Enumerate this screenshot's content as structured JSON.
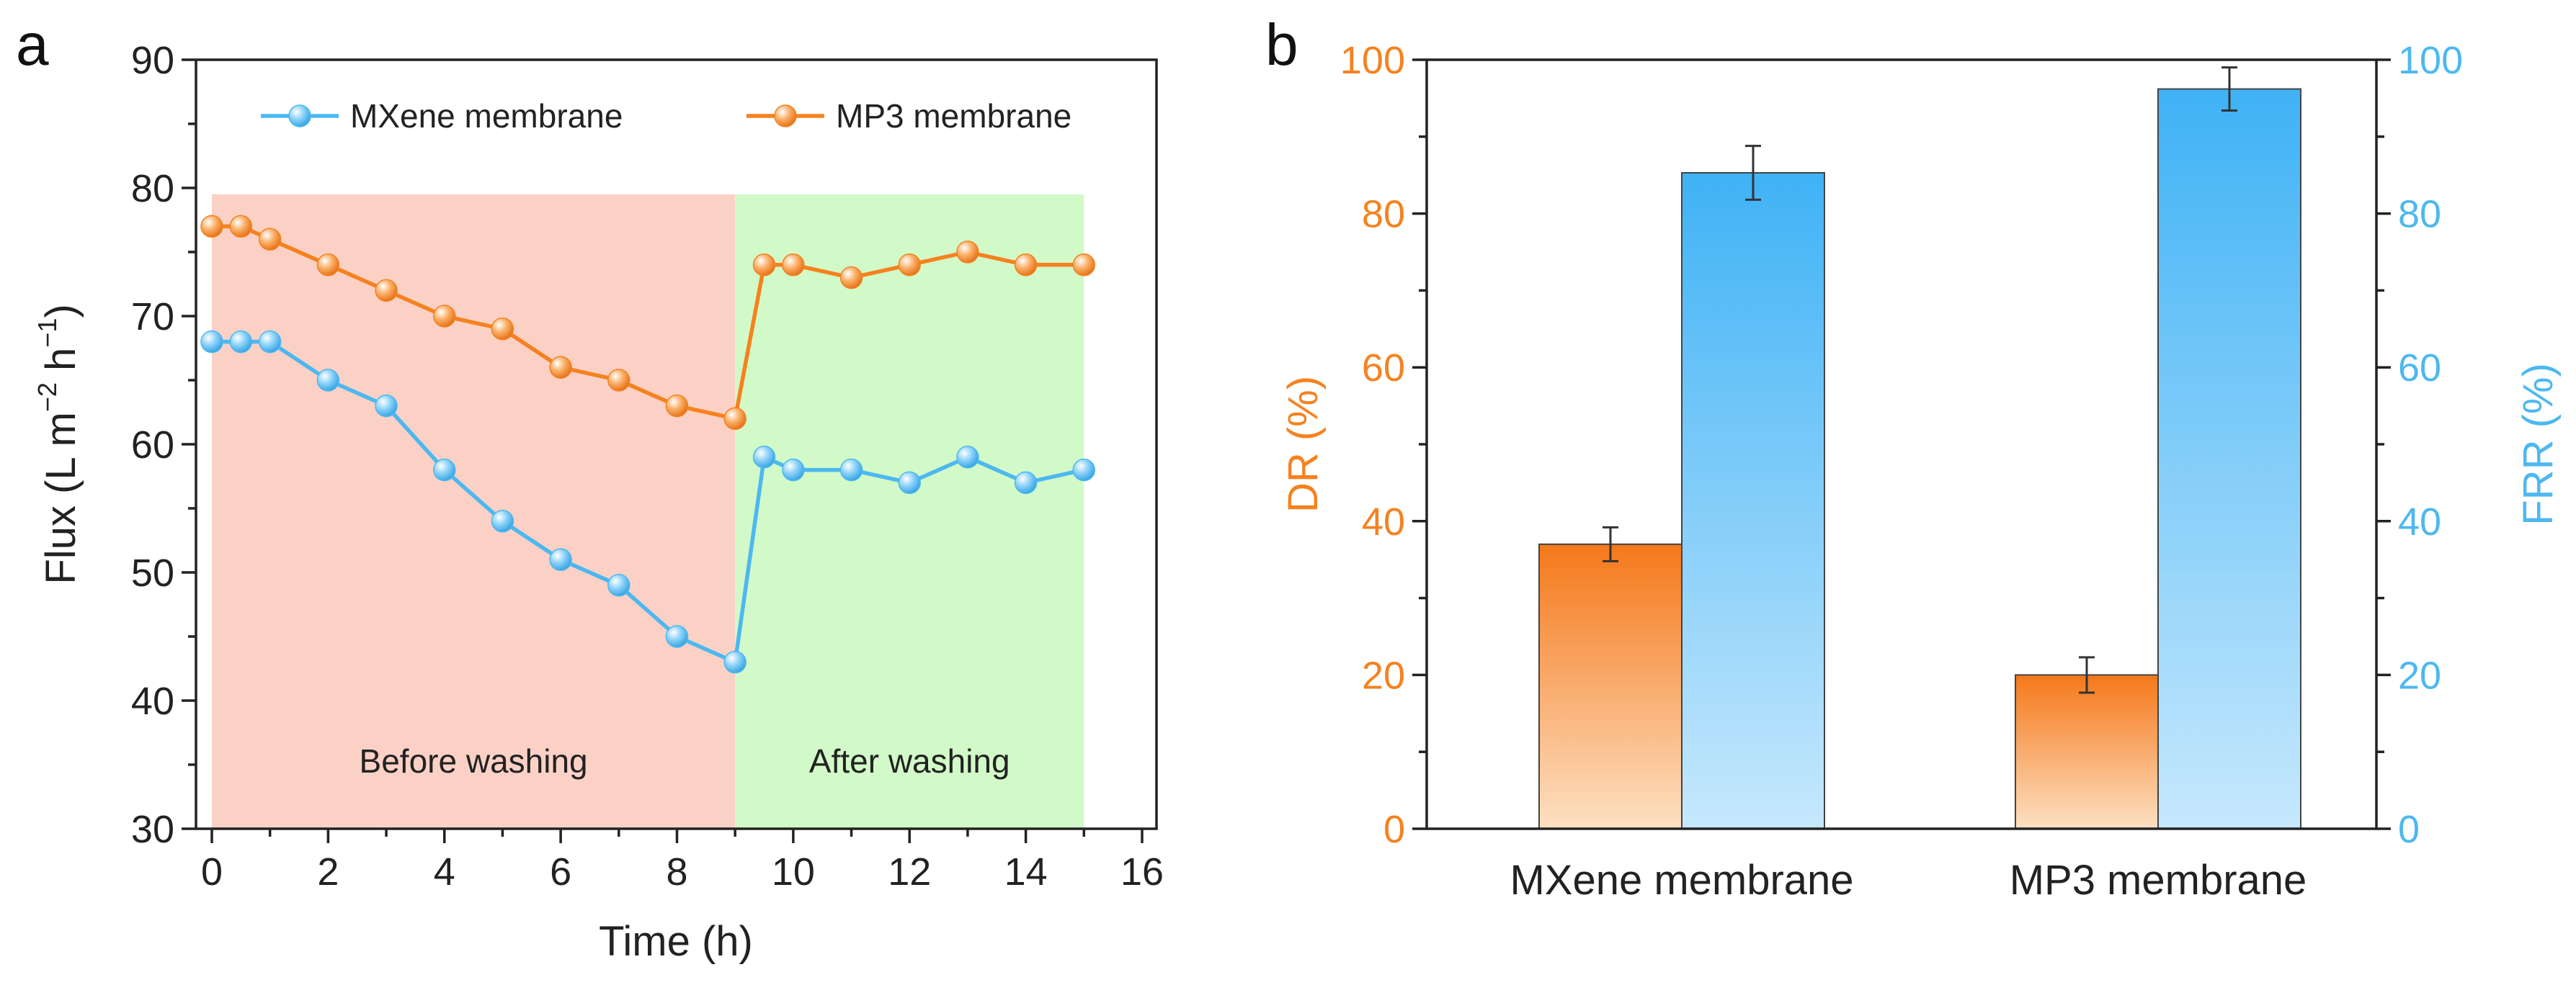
{
  "chart_data": [
    {
      "panel": "a",
      "type": "line",
      "xlabel": "Time (h)",
      "ylabel": "Flux (L m−2 h−1)",
      "ylabel_parts": {
        "main": "Flux (L m",
        "sup1": "−2",
        "mid": " h",
        "sup2": "−1",
        "end": ")"
      },
      "xlim": [
        0,
        16
      ],
      "ylim": [
        30,
        90
      ],
      "xticks": [
        "0",
        "2",
        "4",
        "6",
        "8",
        "10",
        "12",
        "14",
        "16"
      ],
      "yticks": [
        "30",
        "40",
        "50",
        "60",
        "70",
        "80",
        "90"
      ],
      "legend_position": "top",
      "regions": [
        {
          "label": "Before washing",
          "x0": 0,
          "x1": 9,
          "ytop": 79.5,
          "color": "#fbd1c6"
        },
        {
          "label": "After washing",
          "x0": 9,
          "x1": 15,
          "ytop": 79.5,
          "color": "#d2fac8"
        }
      ],
      "x": [
        0,
        0.5,
        1,
        2,
        3,
        4,
        5,
        6,
        7,
        8,
        9,
        9.5,
        10,
        11,
        12,
        13,
        14,
        15
      ],
      "series": [
        {
          "name": "MXene membrane",
          "color": "#4db8f0",
          "values": [
            68,
            68,
            68,
            65,
            63,
            58,
            54,
            51,
            49,
            45,
            43,
            59,
            58,
            58,
            57,
            59,
            57,
            58
          ]
        },
        {
          "name": "MP3 membrane",
          "color": "#f5821f",
          "values": [
            77,
            77,
            76,
            74,
            72,
            70,
            69,
            66,
            65,
            63,
            62,
            74,
            74,
            73,
            74,
            75,
            74,
            74
          ]
        }
      ]
    },
    {
      "panel": "b",
      "type": "bar",
      "categories": [
        "MXene membrane",
        "MP3 membrane"
      ],
      "ylabel_left": "DR (%)",
      "ylabel_right": "FRR (%)",
      "ylim": [
        0,
        100
      ],
      "yticks": [
        "0",
        "20",
        "40",
        "60",
        "80",
        "100"
      ],
      "left_color": "#f5821f",
      "right_color": "#4db8f0",
      "series": [
        {
          "name": "DR",
          "axis": "left",
          "values": [
            37,
            20
          ],
          "errors": [
            2.2,
            2.3
          ]
        },
        {
          "name": "FRR",
          "axis": "right",
          "values": [
            85.3,
            96.2
          ],
          "errors": [
            3.5,
            2.8
          ]
        }
      ]
    }
  ]
}
